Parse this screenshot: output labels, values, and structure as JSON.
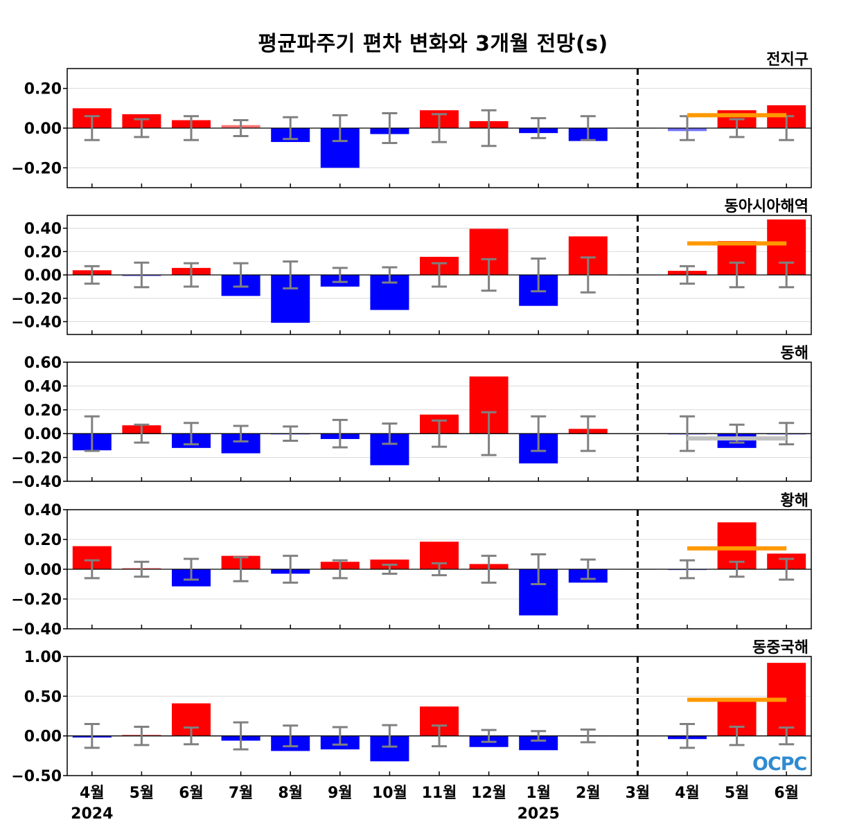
{
  "title": "평균파주기 편차 변화와 3개월 전망(s)",
  "logo_text": "OCPC",
  "colors": {
    "positive": "#ff0000",
    "negative": "#0000ff",
    "error_bar": "#808080",
    "outlook_above": "#ff9900",
    "outlook_normal": "#c0c0c0",
    "forecast_divider": "#000000"
  },
  "chart_data": [
    {
      "type": "bar",
      "panel_label": "전지구",
      "categories": [
        "4월",
        "5월",
        "6월",
        "7월",
        "8월",
        "9월",
        "10월",
        "11월",
        "12월",
        "1월",
        "2월",
        "3월",
        "4월",
        "5월",
        "6월"
      ],
      "year_labels": [
        {
          "index": 0,
          "label": "2024"
        },
        {
          "index": 9,
          "label": "2025"
        }
      ],
      "values": [
        0.1,
        0.07,
        0.04,
        0.015,
        -0.07,
        -0.2,
        -0.03,
        0.09,
        0.035,
        -0.025,
        -0.065,
        0.0,
        -0.015,
        0.09,
        0.115
      ],
      "error": [
        0.06,
        0.045,
        0.06,
        0.04,
        0.055,
        0.065,
        0.075,
        0.07,
        0.09,
        0.05,
        0.06,
        0.0,
        0.06,
        0.045,
        0.06
      ],
      "outlook": {
        "from_index": 12,
        "to_index": 14,
        "value": 0.065,
        "category": "above"
      },
      "ylim": [
        -0.3,
        0.3
      ],
      "yticks": [
        -0.2,
        0.0,
        0.2
      ],
      "ytick_labels": [
        "−0.20",
        "0.00",
        "0.20"
      ]
    },
    {
      "type": "bar",
      "panel_label": "동아시아해역",
      "categories": [
        "4월",
        "5월",
        "6월",
        "7월",
        "8월",
        "9월",
        "10월",
        "11월",
        "12월",
        "1월",
        "2월",
        "3월",
        "4월",
        "5월",
        "6월"
      ],
      "values": [
        0.04,
        -0.01,
        0.06,
        -0.18,
        -0.41,
        -0.1,
        -0.3,
        0.155,
        0.395,
        -0.265,
        0.33,
        0.0,
        0.035,
        0.29,
        0.475
      ],
      "error": [
        0.075,
        0.105,
        0.1,
        0.1,
        0.115,
        0.06,
        0.065,
        0.1,
        0.135,
        0.14,
        0.15,
        0.0,
        0.075,
        0.105,
        0.105
      ],
      "outlook": {
        "from_index": 12,
        "to_index": 14,
        "value": 0.27,
        "category": "above"
      },
      "ylim": [
        -0.51,
        0.51
      ],
      "yticks": [
        -0.4,
        -0.2,
        0.0,
        0.2,
        0.4
      ],
      "ytick_labels": [
        "−0.40",
        "−0.20",
        "0.00",
        "0.20",
        "0.40"
      ]
    },
    {
      "type": "bar",
      "panel_label": "동해",
      "categories": [
        "4월",
        "5월",
        "6월",
        "7월",
        "8월",
        "9월",
        "10월",
        "11월",
        "12월",
        "1월",
        "2월",
        "3월",
        "4월",
        "5월",
        "6월"
      ],
      "values": [
        -0.14,
        0.07,
        -0.12,
        -0.165,
        -0.005,
        -0.045,
        -0.265,
        0.16,
        0.48,
        -0.25,
        0.04,
        0.0,
        -0.005,
        -0.12,
        -0.005
      ],
      "error": [
        0.145,
        0.075,
        0.09,
        0.065,
        0.06,
        0.115,
        0.085,
        0.11,
        0.18,
        0.145,
        0.145,
        0.0,
        0.145,
        0.075,
        0.09
      ],
      "outlook": {
        "from_index": 12,
        "to_index": 14,
        "value": -0.04,
        "category": "normal"
      },
      "ylim": [
        -0.4,
        0.6
      ],
      "yticks": [
        -0.4,
        -0.2,
        0.0,
        0.2,
        0.4,
        0.6
      ],
      "ytick_labels": [
        "−0.40",
        "−0.20",
        "0.00",
        "0.20",
        "0.40",
        "0.60"
      ]
    },
    {
      "type": "bar",
      "panel_label": "황해",
      "categories": [
        "4월",
        "5월",
        "6월",
        "7월",
        "8월",
        "9월",
        "10월",
        "11월",
        "12월",
        "1월",
        "2월",
        "3월",
        "4월",
        "5월",
        "6월"
      ],
      "values": [
        0.155,
        0.005,
        -0.115,
        0.09,
        -0.03,
        0.05,
        0.065,
        0.185,
        0.035,
        -0.31,
        -0.09,
        0.0,
        -0.005,
        0.315,
        0.105
      ],
      "error": [
        0.06,
        0.05,
        0.07,
        0.08,
        0.09,
        0.06,
        0.03,
        0.04,
        0.09,
        0.1,
        0.065,
        0.0,
        0.06,
        0.05,
        0.07
      ],
      "outlook": {
        "from_index": 12,
        "to_index": 14,
        "value": 0.14,
        "category": "above"
      },
      "ylim": [
        -0.4,
        0.4
      ],
      "yticks": [
        -0.4,
        -0.2,
        0.0,
        0.2,
        0.4
      ],
      "ytick_labels": [
        "−0.40",
        "−0.20",
        "0.00",
        "0.20",
        "0.40"
      ]
    },
    {
      "type": "bar",
      "panel_label": "동중국해",
      "categories": [
        "4월",
        "5월",
        "6월",
        "7월",
        "8월",
        "9월",
        "10월",
        "11월",
        "12월",
        "1월",
        "2월",
        "3월",
        "4월",
        "5월",
        "6월"
      ],
      "values": [
        -0.02,
        0.01,
        0.41,
        -0.06,
        -0.19,
        -0.17,
        -0.32,
        0.37,
        -0.14,
        -0.18,
        0.0,
        0.0,
        -0.04,
        0.45,
        0.92
      ],
      "error": [
        0.15,
        0.115,
        0.105,
        0.17,
        0.13,
        0.11,
        0.135,
        0.13,
        0.075,
        0.06,
        0.08,
        0.0,
        0.15,
        0.115,
        0.105
      ],
      "outlook": {
        "from_index": 12,
        "to_index": 14,
        "value": 0.455,
        "category": "above"
      },
      "ylim": [
        -0.5,
        1.0
      ],
      "yticks": [
        -0.5,
        0.0,
        0.5,
        1.0
      ],
      "ytick_labels": [
        "−0.50",
        "0.00",
        "0.50",
        "1.00"
      ]
    }
  ]
}
